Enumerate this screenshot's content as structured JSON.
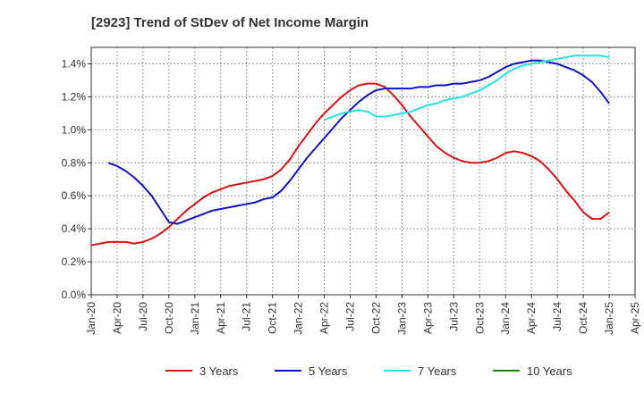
{
  "chart_data": {
    "type": "line",
    "title": "[2923]  Trend of StDev of Net Income Margin",
    "xlabel": "",
    "ylabel": "",
    "x_ticks": [
      "Jan-20",
      "Apr-20",
      "Jul-20",
      "Oct-20",
      "Jan-21",
      "Apr-21",
      "Jul-21",
      "Oct-21",
      "Jan-22",
      "Apr-22",
      "Jul-22",
      "Oct-22",
      "Jan-23",
      "Apr-23",
      "Jul-23",
      "Oct-23",
      "Jan-24",
      "Apr-24",
      "Jul-24",
      "Oct-24",
      "Jan-25",
      "Apr-25"
    ],
    "y_ticks": [
      "0.0%",
      "0.2%",
      "0.4%",
      "0.6%",
      "0.8%",
      "1.0%",
      "1.2%",
      "1.4%"
    ],
    "ylim": [
      0,
      1.5
    ],
    "grid": true,
    "legend_position": "bottom",
    "colors": {
      "3 Years": "#dd1111",
      "5 Years": "#1111cc",
      "7 Years": "#22e5e5",
      "10 Years": "#118811"
    },
    "series": [
      {
        "name": "3 Years",
        "x": [
          "Jan-20",
          "Feb-20",
          "Mar-20",
          "Apr-20",
          "May-20",
          "Jun-20",
          "Jul-20",
          "Aug-20",
          "Sep-20",
          "Oct-20",
          "Nov-20",
          "Dec-20",
          "Jan-21",
          "Feb-21",
          "Mar-21",
          "Apr-21",
          "May-21",
          "Jun-21",
          "Jul-21",
          "Aug-21",
          "Sep-21",
          "Oct-21",
          "Nov-21",
          "Dec-21",
          "Jan-22",
          "Feb-22",
          "Mar-22",
          "Apr-22",
          "May-22",
          "Jun-22",
          "Jul-22",
          "Aug-22",
          "Sep-22",
          "Oct-22",
          "Nov-22",
          "Dec-22",
          "Jan-23",
          "Feb-23",
          "Mar-23",
          "Apr-23",
          "May-23",
          "Jun-23",
          "Jul-23",
          "Aug-23",
          "Sep-23",
          "Oct-23",
          "Nov-23",
          "Dec-23",
          "Jan-24",
          "Feb-24",
          "Mar-24",
          "Apr-24",
          "May-24",
          "Jun-24",
          "Jul-24",
          "Aug-24",
          "Sep-24",
          "Oct-24",
          "Nov-24",
          "Dec-24",
          "Jan-25"
        ],
        "values": [
          0.3,
          0.31,
          0.32,
          0.32,
          0.32,
          0.31,
          0.32,
          0.34,
          0.37,
          0.41,
          0.46,
          0.51,
          0.55,
          0.59,
          0.62,
          0.64,
          0.66,
          0.67,
          0.68,
          0.69,
          0.7,
          0.72,
          0.76,
          0.82,
          0.9,
          0.97,
          1.04,
          1.1,
          1.15,
          1.2,
          1.24,
          1.27,
          1.28,
          1.28,
          1.26,
          1.21,
          1.15,
          1.08,
          1.02,
          0.96,
          0.9,
          0.86,
          0.83,
          0.81,
          0.8,
          0.8,
          0.81,
          0.83,
          0.86,
          0.87,
          0.86,
          0.84,
          0.81,
          0.76,
          0.7,
          0.63,
          0.57,
          0.5,
          0.46,
          0.46,
          0.5
        ]
      },
      {
        "name": "5 Years",
        "x": [
          "Jan-20",
          "Feb-20",
          "Mar-20",
          "Apr-20",
          "May-20",
          "Jun-20",
          "Jul-20",
          "Aug-20",
          "Sep-20",
          "Oct-20",
          "Nov-20",
          "Dec-20",
          "Jan-21",
          "Feb-21",
          "Mar-21",
          "Apr-21",
          "May-21",
          "Jun-21",
          "Jul-21",
          "Aug-21",
          "Sep-21",
          "Oct-21",
          "Nov-21",
          "Dec-21",
          "Jan-22",
          "Feb-22",
          "Mar-22",
          "Apr-22",
          "May-22",
          "Jun-22",
          "Jul-22",
          "Aug-22",
          "Sep-22",
          "Oct-22",
          "Nov-22",
          "Dec-22",
          "Jan-23",
          "Feb-23",
          "Mar-23",
          "Apr-23",
          "May-23",
          "Jun-23",
          "Jul-23",
          "Aug-23",
          "Sep-23",
          "Oct-23",
          "Nov-23",
          "Dec-23",
          "Jan-24",
          "Feb-24",
          "Mar-24",
          "Apr-24",
          "May-24",
          "Jun-24",
          "Jul-24",
          "Aug-24",
          "Sep-24",
          "Oct-24",
          "Nov-24",
          "Dec-24",
          "Jan-25"
        ],
        "values": [
          null,
          null,
          0.8,
          0.78,
          0.75,
          0.71,
          0.66,
          0.6,
          0.52,
          0.44,
          0.43,
          0.45,
          0.47,
          0.49,
          0.51,
          0.52,
          0.53,
          0.54,
          0.55,
          0.56,
          0.58,
          0.59,
          0.63,
          0.69,
          0.76,
          0.83,
          0.89,
          0.95,
          1.01,
          1.07,
          1.12,
          1.17,
          1.21,
          1.24,
          1.25,
          1.25,
          1.25,
          1.25,
          1.26,
          1.26,
          1.27,
          1.27,
          1.28,
          1.28,
          1.29,
          1.3,
          1.32,
          1.35,
          1.38,
          1.4,
          1.41,
          1.42,
          1.42,
          1.41,
          1.4,
          1.38,
          1.36,
          1.33,
          1.29,
          1.23,
          1.16
        ]
      },
      {
        "name": "7 Years",
        "x": [
          "Apr-22",
          "May-22",
          "Jun-22",
          "Jul-22",
          "Aug-22",
          "Sep-22",
          "Oct-22",
          "Nov-22",
          "Dec-22",
          "Jan-23",
          "Feb-23",
          "Mar-23",
          "Apr-23",
          "May-23",
          "Jun-23",
          "Jul-23",
          "Aug-23",
          "Sep-23",
          "Oct-23",
          "Nov-23",
          "Dec-23",
          "Jan-24",
          "Feb-24",
          "Mar-24",
          "Apr-24",
          "May-24",
          "Jun-24",
          "Jul-24",
          "Aug-24",
          "Sep-24",
          "Oct-24",
          "Nov-24",
          "Dec-24",
          "Jan-25"
        ],
        "values": [
          1.06,
          1.08,
          1.1,
          1.11,
          1.12,
          1.11,
          1.08,
          1.08,
          1.09,
          1.1,
          1.11,
          1.13,
          1.15,
          1.16,
          1.18,
          1.19,
          1.2,
          1.22,
          1.24,
          1.27,
          1.3,
          1.34,
          1.37,
          1.39,
          1.4,
          1.41,
          1.42,
          1.43,
          1.44,
          1.45,
          1.45,
          1.45,
          1.45,
          1.44
        ]
      },
      {
        "name": "10 Years",
        "x": [],
        "values": []
      }
    ]
  }
}
